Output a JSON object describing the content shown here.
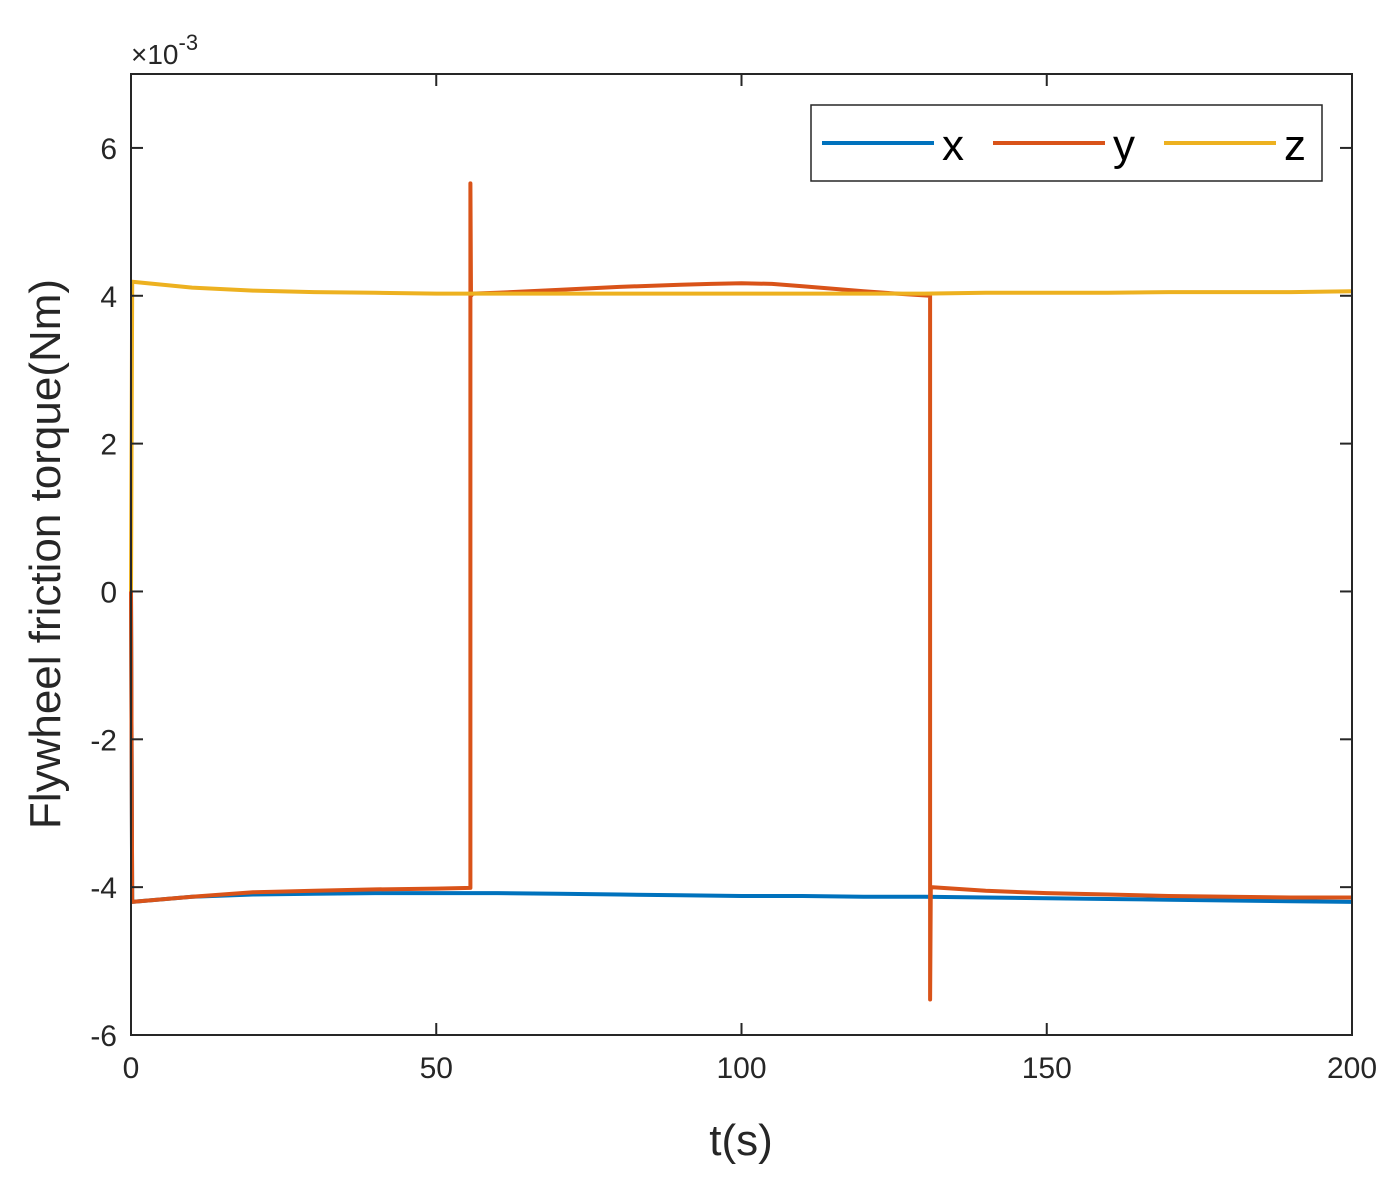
{
  "chart_data": {
    "type": "line",
    "title": "",
    "xlabel": "t(s)",
    "ylabel": "Flywheel friction torque(Nm)",
    "xlim": [
      0,
      200
    ],
    "ylim": [
      -6,
      7
    ],
    "xticks": [
      0,
      50,
      100,
      150,
      200
    ],
    "xtick_labels": [
      "0",
      "50",
      "100",
      "150",
      "200"
    ],
    "yticks": [
      -6,
      -4,
      -2,
      0,
      2,
      4,
      6
    ],
    "ytick_labels": [
      "-6",
      "-4",
      "-2",
      "0",
      "2",
      "4",
      "6"
    ],
    "y_exponent": {
      "base": "×10",
      "power": "-3"
    },
    "grid": false,
    "legend_position": "top-right",
    "series": [
      {
        "name": "x",
        "color": "#0072BD",
        "x": [
          0,
          0.2,
          10,
          20,
          30,
          40,
          50,
          60,
          70,
          80,
          90,
          100,
          110,
          120,
          130,
          140,
          150,
          160,
          170,
          180,
          190,
          200
        ],
        "y": [
          0,
          -4.2,
          -4.13,
          -4.1,
          -4.09,
          -4.08,
          -4.08,
          -4.08,
          -4.09,
          -4.1,
          -4.11,
          -4.12,
          -4.12,
          -4.13,
          -4.13,
          -4.14,
          -4.15,
          -4.16,
          -4.17,
          -4.18,
          -4.19,
          -4.2
        ]
      },
      {
        "name": "y",
        "color": "#D95319",
        "x": [
          0,
          0.2,
          10,
          20,
          30,
          40,
          50,
          55.6,
          55.6,
          55.7,
          56,
          60,
          70,
          80,
          90,
          95,
          100,
          105,
          110,
          120,
          127,
          130.9,
          130.9,
          131.0,
          131.3,
          140,
          150,
          160,
          170,
          180,
          190,
          200
        ],
        "y": [
          0,
          -4.2,
          -4.13,
          -4.07,
          -4.05,
          -4.03,
          -4.02,
          -4.01,
          5.52,
          4.0,
          4.03,
          4.04,
          4.08,
          4.12,
          4.15,
          4.16,
          4.17,
          4.16,
          4.13,
          4.06,
          4.02,
          4.0,
          -5.52,
          -4.0,
          -4.0,
          -4.05,
          -4.08,
          -4.1,
          -4.12,
          -4.13,
          -4.14,
          -4.14
        ]
      },
      {
        "name": "z",
        "color": "#EDB120",
        "x": [
          0,
          0.2,
          10,
          20,
          30,
          40,
          50,
          60,
          70,
          80,
          90,
          100,
          110,
          120,
          130,
          140,
          150,
          160,
          170,
          180,
          190,
          200
        ],
        "y": [
          0,
          4.19,
          4.11,
          4.07,
          4.05,
          4.04,
          4.03,
          4.03,
          4.03,
          4.03,
          4.03,
          4.03,
          4.03,
          4.03,
          4.03,
          4.04,
          4.04,
          4.04,
          4.05,
          4.05,
          4.05,
          4.06
        ]
      }
    ]
  }
}
